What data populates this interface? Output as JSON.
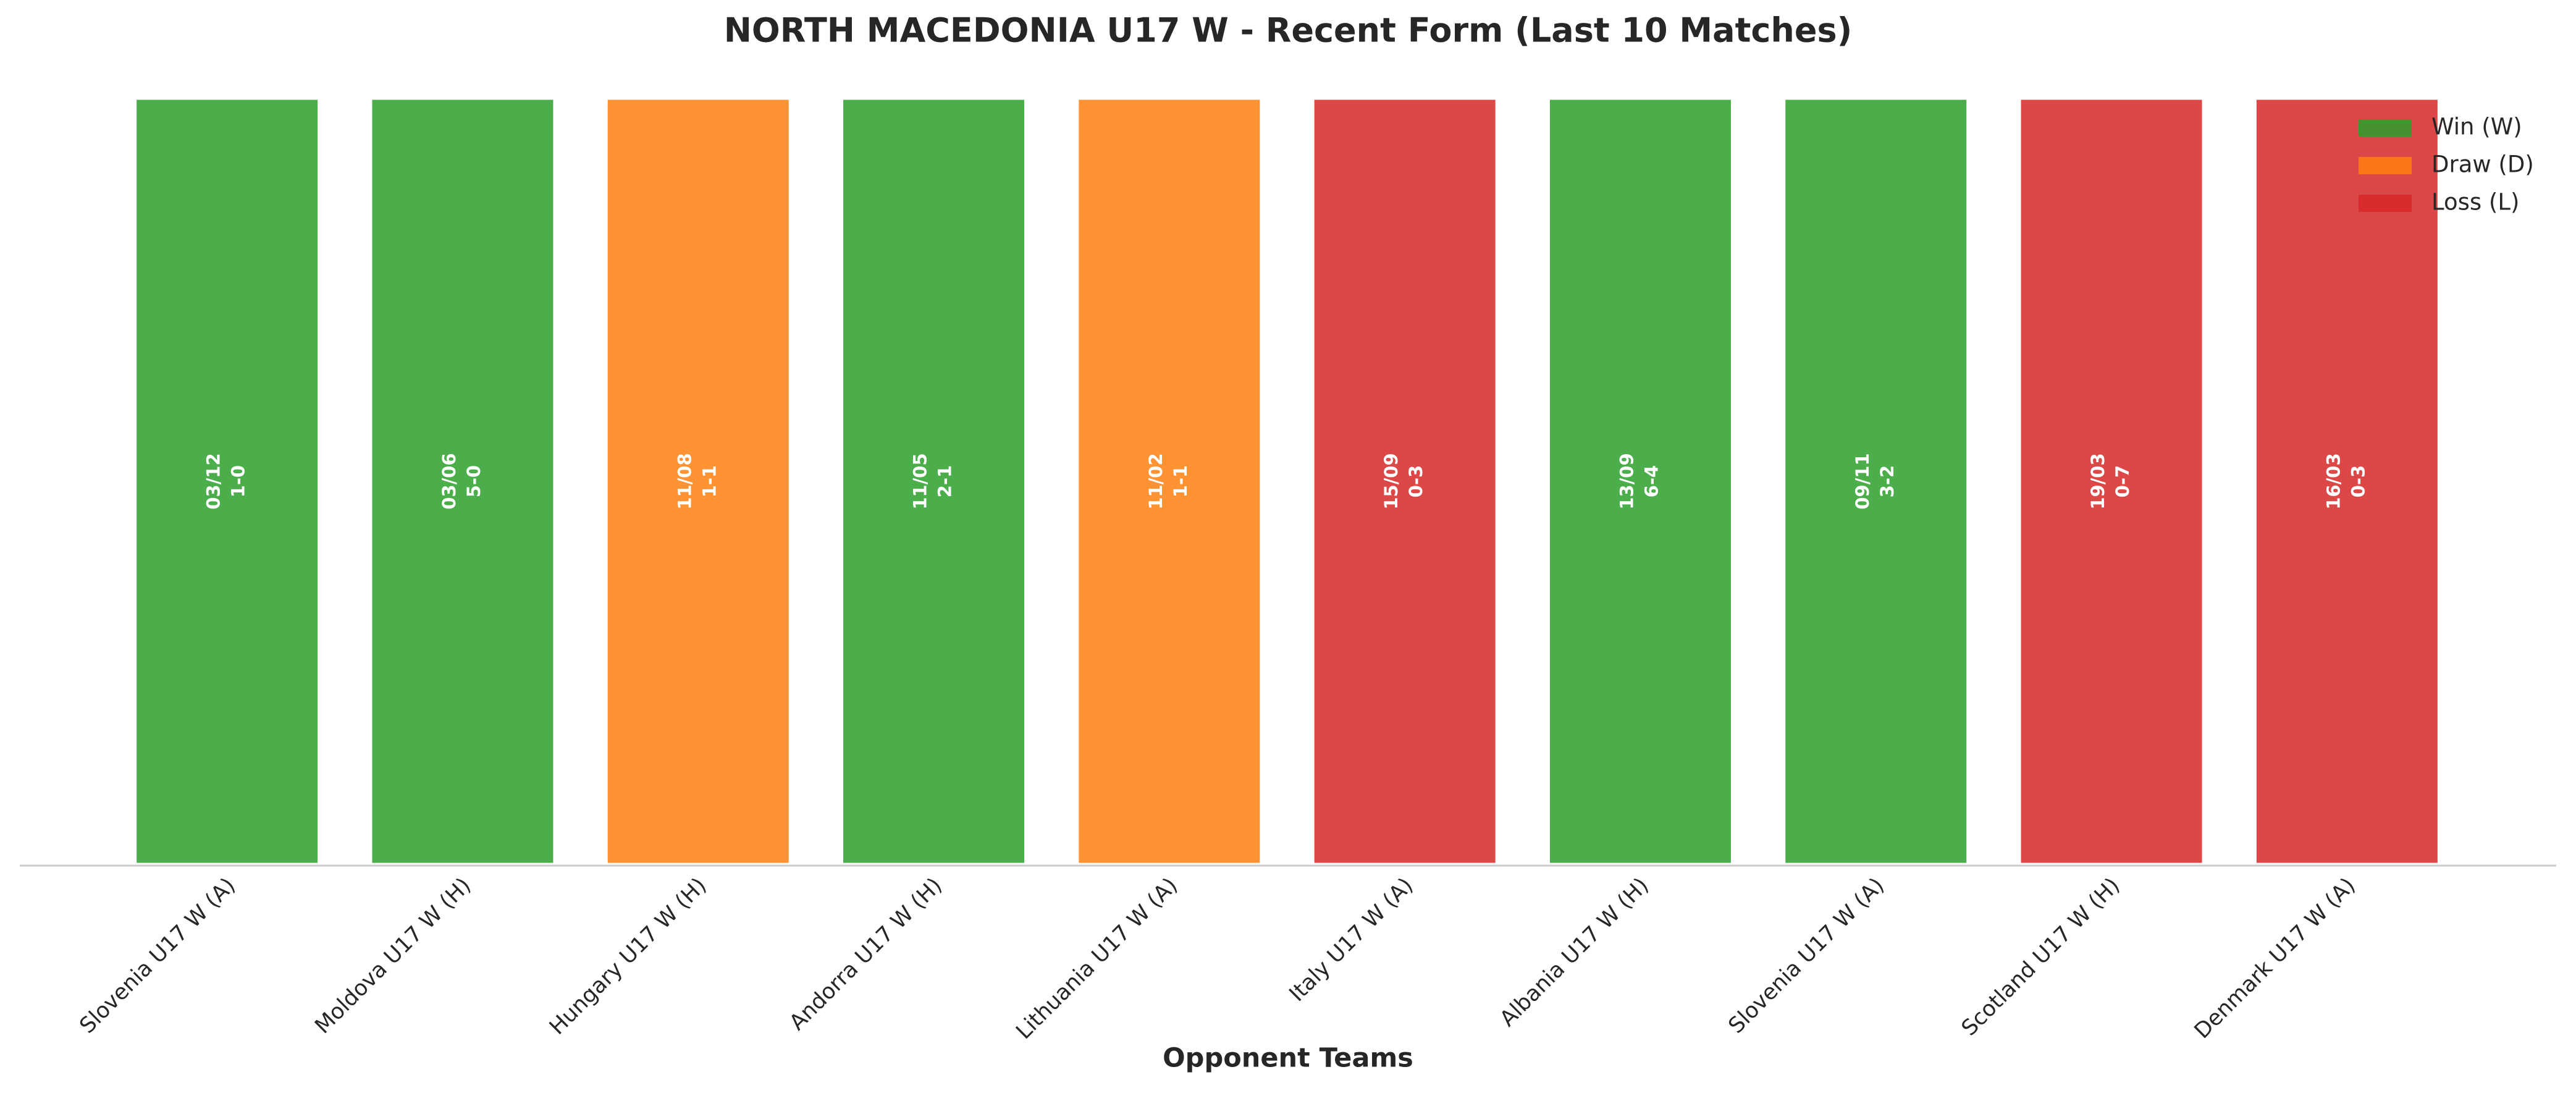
{
  "chart_data": {
    "type": "bar",
    "title": "NORTH MACEDONIA U17 W - Recent Form (Last 10 Matches)",
    "x_label": "Opponent Teams",
    "categories": [
      "Slovenia U17 W (A)",
      "Moldova U17 W (H)",
      "Hungary U17 W (H)",
      "Andorra U17 W (H)",
      "Lithuania U17 W (A)",
      "Italy U17 W (A)",
      "Albania U17 W (H)",
      "Slovenia U17 W (A)",
      "Scotland U17 W (H)",
      "Denmark U17 W (A)"
    ],
    "values": [
      1,
      1,
      1,
      1,
      1,
      1,
      1,
      1,
      1,
      1
    ],
    "dates": [
      "03/12",
      "03/06",
      "11/08",
      "11/05",
      "11/02",
      "15/09",
      "13/09",
      "09/11",
      "19/03",
      "16/03"
    ],
    "scores": [
      "1-0",
      "5-0",
      "1-1",
      "2-1",
      "1-1",
      "0-3",
      "6-4",
      "3-2",
      "0-7",
      "0-3"
    ],
    "colors": [
      "#2ca02c",
      "#2ca02c",
      "#ff7f0e",
      "#2ca02c",
      "#ff7f0e",
      "#d62728",
      "#2ca02c",
      "#2ca02c",
      "#d62728",
      "#d62728"
    ],
    "legend": [
      {
        "name": "Win (W)",
        "color": "#2ca02c"
      },
      {
        "name": "Draw (D)",
        "color": "#ff7f0e"
      },
      {
        "name": "Loss (L)",
        "color": "#d62728"
      }
    ],
    "legend_position": "upper right"
  }
}
